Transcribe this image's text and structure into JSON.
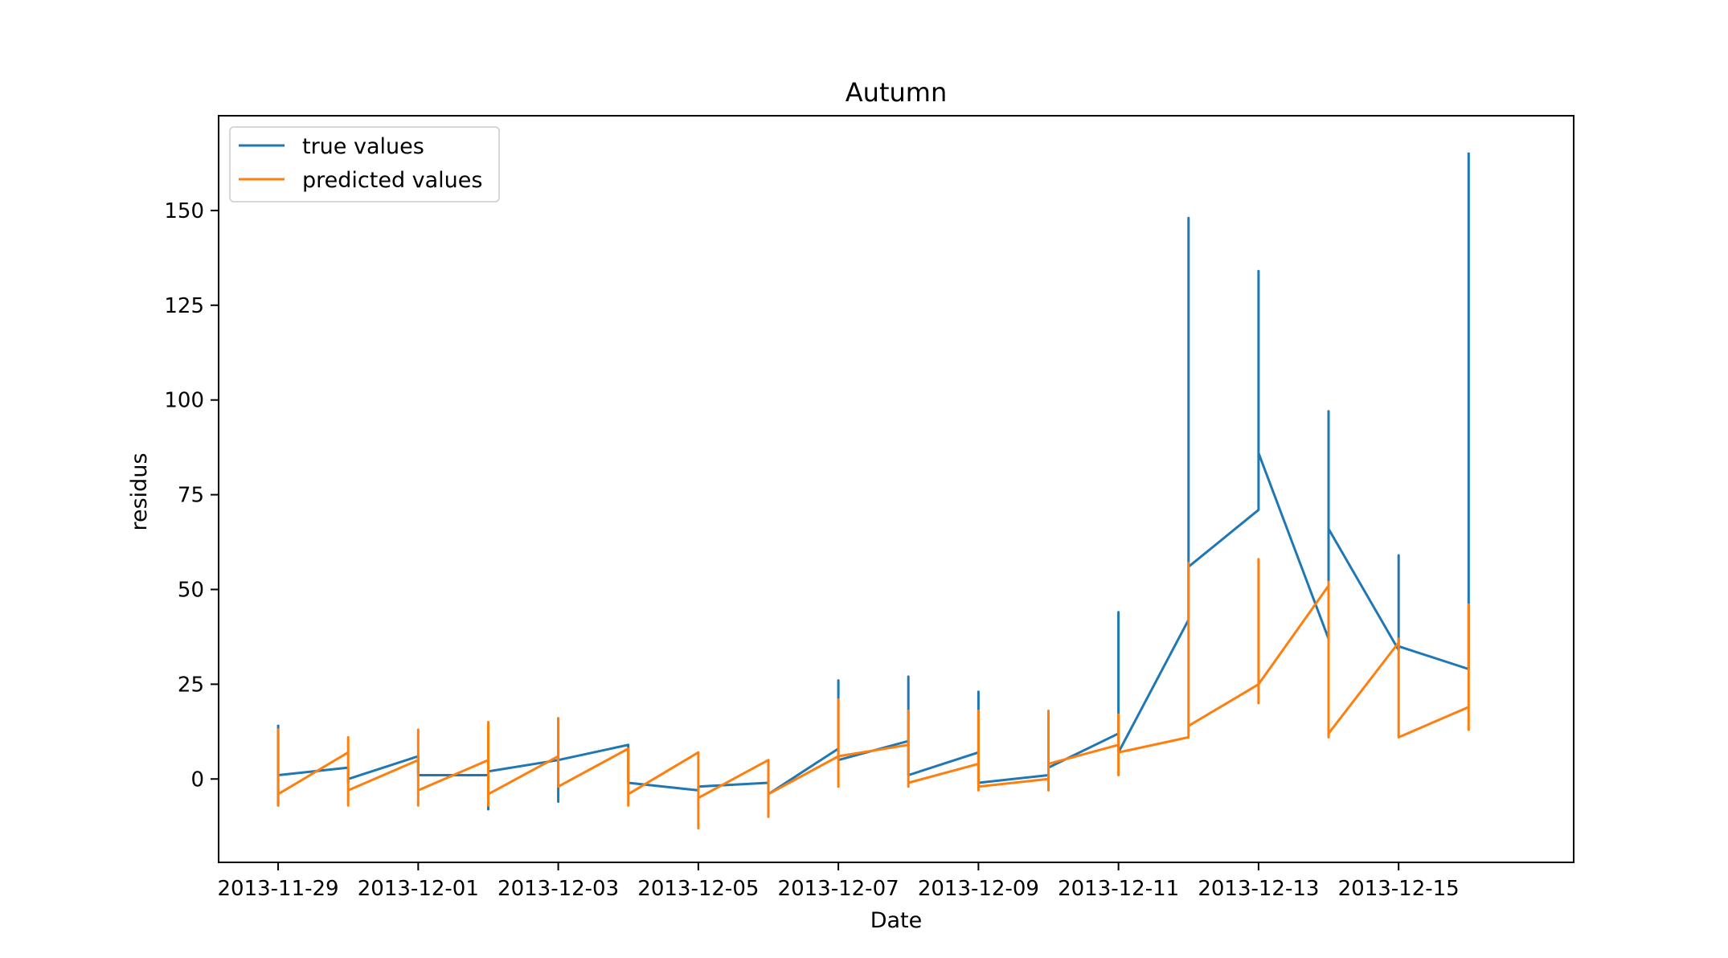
{
  "chart_data": {
    "type": "line",
    "title": "Autumn",
    "xlabel": "Date",
    "ylabel": "residus",
    "xlim": [
      "2013-11-28 03:36",
      "2013-12-17 12:00"
    ],
    "ylim": [
      -22,
      175
    ],
    "xticks": [
      "2013-11-29",
      "2013-12-01",
      "2013-12-03",
      "2013-12-05",
      "2013-12-07",
      "2013-12-09",
      "2013-12-11",
      "2013-12-13",
      "2013-12-15"
    ],
    "yticks": [
      0,
      25,
      50,
      75,
      100,
      125,
      150
    ],
    "grid": false,
    "legend_position": "upper left",
    "series": [
      {
        "name": "true values",
        "color": "#1f77b4",
        "points": [
          [
            "2013-11-29 00:00",
            14
          ],
          [
            "2013-11-29 00:00",
            -7
          ],
          [
            "2013-11-29 00:00",
            1
          ],
          [
            "2013-11-30 00:00",
            3
          ],
          [
            "2013-11-30 00:00",
            -1
          ],
          [
            "2013-11-30 00:00",
            0
          ],
          [
            "2013-12-01 00:00",
            6
          ],
          [
            "2013-12-01 00:00",
            1
          ],
          [
            "2013-12-02 00:00",
            1
          ],
          [
            "2013-12-02 00:00",
            -8
          ],
          [
            "2013-12-02 00:00",
            2
          ],
          [
            "2013-12-03 00:00",
            5
          ],
          [
            "2013-12-03 00:00",
            16
          ],
          [
            "2013-12-03 00:00",
            -6
          ],
          [
            "2013-12-03 00:00",
            5
          ],
          [
            "2013-12-04 00:00",
            9
          ],
          [
            "2013-12-04 00:00",
            -1
          ],
          [
            "2013-12-05 00:00",
            -3
          ],
          [
            "2013-12-05 00:00",
            -2
          ],
          [
            "2013-12-06 00:00",
            -1
          ],
          [
            "2013-12-06 00:00",
            -4
          ],
          [
            "2013-12-07 00:00",
            8
          ],
          [
            "2013-12-07 00:00",
            26
          ],
          [
            "2013-12-07 00:00",
            5
          ],
          [
            "2013-12-08 00:00",
            10
          ],
          [
            "2013-12-08 00:00",
            27
          ],
          [
            "2013-12-08 00:00",
            1
          ],
          [
            "2013-12-09 00:00",
            7
          ],
          [
            "2013-12-09 00:00",
            23
          ],
          [
            "2013-12-09 00:00",
            -1
          ],
          [
            "2013-12-10 00:00",
            1
          ],
          [
            "2013-12-10 00:00",
            3
          ],
          [
            "2013-12-11 00:00",
            12
          ],
          [
            "2013-12-11 00:00",
            44
          ],
          [
            "2013-12-11 00:00",
            7
          ],
          [
            "2013-12-12 00:00",
            42
          ],
          [
            "2013-12-12 00:00",
            148
          ],
          [
            "2013-12-12 00:00",
            56
          ],
          [
            "2013-12-13 00:00",
            71
          ],
          [
            "2013-12-13 00:00",
            134
          ],
          [
            "2013-12-13 00:00",
            86
          ],
          [
            "2013-12-14 00:00",
            37
          ],
          [
            "2013-12-14 00:00",
            97
          ],
          [
            "2013-12-14 00:00",
            66
          ],
          [
            "2013-12-15 00:00",
            34
          ],
          [
            "2013-12-15 00:00",
            59
          ],
          [
            "2013-12-15 00:00",
            35
          ],
          [
            "2013-12-16 00:00",
            29
          ],
          [
            "2013-12-16 00:00",
            165
          ]
        ]
      },
      {
        "name": "predicted values",
        "color": "#ff7f0e",
        "points": [
          [
            "2013-11-29 00:00",
            13
          ],
          [
            "2013-11-29 00:00",
            -7
          ],
          [
            "2013-11-29 00:00",
            -4
          ],
          [
            "2013-11-30 00:00",
            7
          ],
          [
            "2013-11-30 00:00",
            11
          ],
          [
            "2013-11-30 00:00",
            -7
          ],
          [
            "2013-11-30 00:00",
            -3
          ],
          [
            "2013-12-01 00:00",
            5
          ],
          [
            "2013-12-01 00:00",
            13
          ],
          [
            "2013-12-01 00:00",
            -7
          ],
          [
            "2013-12-01 00:00",
            -3
          ],
          [
            "2013-12-02 00:00",
            5
          ],
          [
            "2013-12-02 00:00",
            15
          ],
          [
            "2013-12-02 00:00",
            -7
          ],
          [
            "2013-12-02 00:00",
            -4
          ],
          [
            "2013-12-03 00:00",
            6
          ],
          [
            "2013-12-03 00:00",
            16
          ],
          [
            "2013-12-03 00:00",
            -2
          ],
          [
            "2013-12-04 00:00",
            8
          ],
          [
            "2013-12-04 00:00",
            -7
          ],
          [
            "2013-12-04 00:00",
            -4
          ],
          [
            "2013-12-05 00:00",
            7
          ],
          [
            "2013-12-05 00:00",
            -13
          ],
          [
            "2013-12-05 00:00",
            -5
          ],
          [
            "2013-12-06 00:00",
            5
          ],
          [
            "2013-12-06 00:00",
            -10
          ],
          [
            "2013-12-06 00:00",
            -4
          ],
          [
            "2013-12-07 00:00",
            6
          ],
          [
            "2013-12-07 00:00",
            21
          ],
          [
            "2013-12-07 00:00",
            -2
          ],
          [
            "2013-12-07 00:00",
            6
          ],
          [
            "2013-12-08 00:00",
            9
          ],
          [
            "2013-12-08 00:00",
            18
          ],
          [
            "2013-12-08 00:00",
            -2
          ],
          [
            "2013-12-08 00:00",
            -1
          ],
          [
            "2013-12-09 00:00",
            4
          ],
          [
            "2013-12-09 00:00",
            18
          ],
          [
            "2013-12-09 00:00",
            -3
          ],
          [
            "2013-12-09 00:00",
            -2
          ],
          [
            "2013-12-10 00:00",
            0
          ],
          [
            "2013-12-10 00:00",
            18
          ],
          [
            "2013-12-10 00:00",
            -3
          ],
          [
            "2013-12-10 00:00",
            4
          ],
          [
            "2013-12-11 00:00",
            9
          ],
          [
            "2013-12-11 00:00",
            17
          ],
          [
            "2013-12-11 00:00",
            1
          ],
          [
            "2013-12-11 00:00",
            7
          ],
          [
            "2013-12-12 00:00",
            11
          ],
          [
            "2013-12-12 00:00",
            57
          ],
          [
            "2013-12-12 00:00",
            11
          ],
          [
            "2013-12-12 00:00",
            14
          ],
          [
            "2013-12-13 00:00",
            25
          ],
          [
            "2013-12-13 00:00",
            58
          ],
          [
            "2013-12-13 00:00",
            20
          ],
          [
            "2013-12-13 00:00",
            25
          ],
          [
            "2013-12-14 00:00",
            51
          ],
          [
            "2013-12-14 00:00",
            52
          ],
          [
            "2013-12-14 00:00",
            11
          ],
          [
            "2013-12-14 00:00",
            12
          ],
          [
            "2013-12-15 00:00",
            36
          ],
          [
            "2013-12-15 00:00",
            37
          ],
          [
            "2013-12-15 00:00",
            11
          ],
          [
            "2013-12-16 00:00",
            19
          ],
          [
            "2013-12-16 00:00",
            46
          ],
          [
            "2013-12-16 00:00",
            13
          ]
        ]
      }
    ]
  }
}
